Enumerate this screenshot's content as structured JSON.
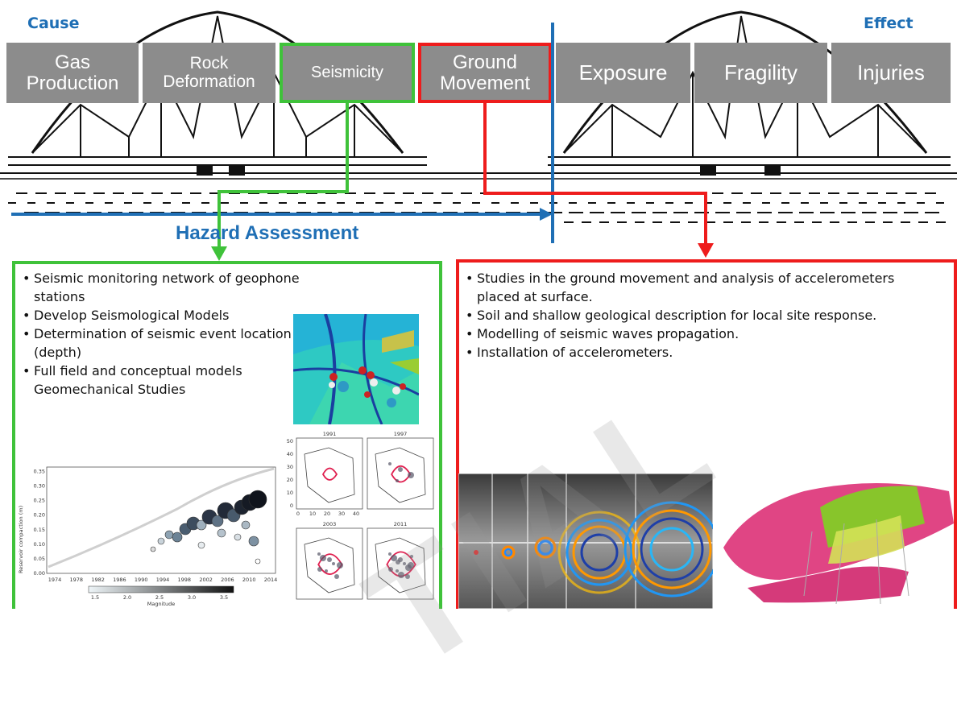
{
  "header": {
    "cause_label": "Cause",
    "effect_label": "Effect",
    "hazard_label": "Hazard Assessment"
  },
  "stages": [
    {
      "label": "Gas\nProduction"
    },
    {
      "label": "Rock\nDeformation"
    },
    {
      "label": "Seismicity"
    },
    {
      "label": "Ground\nMovement"
    },
    {
      "label": "Exposure"
    },
    {
      "label": "Fragility"
    },
    {
      "label": "Injuries"
    }
  ],
  "left_panel": {
    "bullets": [
      "Seismic monitoring network of geophone stations",
      "Develop Seismological Models",
      "Determination of seismic event location (depth)",
      "Full field and conceptual models Geomechanical Studies"
    ],
    "chart": {
      "ylabel": "Reservoir compaction (m)",
      "xticks": [
        "1974",
        "1978",
        "1982",
        "1986",
        "1990",
        "1994",
        "1998",
        "2002",
        "2006",
        "2010",
        "2014"
      ],
      "yticks": [
        "0.00",
        "0.05",
        "0.10",
        "0.15",
        "0.20",
        "0.25",
        "0.30",
        "0.35"
      ],
      "colorbar_ticks": [
        "1.5",
        "2.0",
        "2.5",
        "3.0",
        "3.5"
      ],
      "colorbar_label": "Magnitude"
    },
    "maps": {
      "years": [
        "1991",
        "1997",
        "2003",
        "2011"
      ],
      "yticks": [
        "50",
        "40",
        "30",
        "20",
        "10",
        "0"
      ],
      "xticks": [
        "0",
        "10",
        "20",
        "30",
        "40"
      ]
    }
  },
  "right_panel": {
    "bullets": [
      "Studies in the ground movement and analysis of accelerometers placed at surface.",
      "Soil and shallow geological description for local site response.",
      "Modelling of seismic waves propagation.",
      "Installation of accelerometers."
    ]
  },
  "watermark": "TIAL",
  "colors": {
    "stage_bg": "#8c8c8c",
    "green": "#3fc23a",
    "red": "#ee1c1c",
    "blue": "#1f6fb5"
  }
}
